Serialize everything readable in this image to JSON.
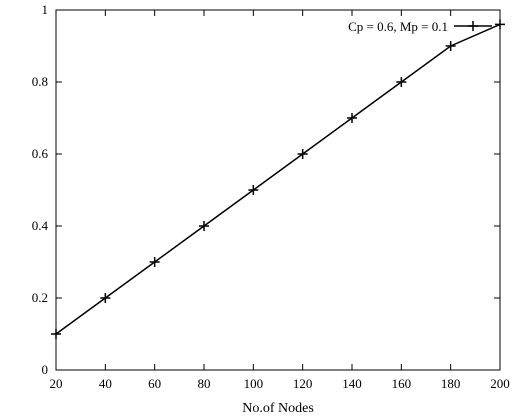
{
  "chart_data": {
    "type": "line",
    "title": "",
    "xlabel": "No.of Nodes",
    "ylabel": "",
    "xlim": [
      20,
      200
    ],
    "ylim": [
      0,
      1
    ],
    "x_ticks": [
      "20",
      "40",
      "60",
      "80",
      "100",
      "120",
      "140",
      "160",
      "180",
      "200"
    ],
    "y_ticks": [
      "0",
      "0.2",
      "0.4",
      "0.6",
      "0.8",
      "1"
    ],
    "grid": false,
    "legend_position": "top-right",
    "marker": "plus",
    "series": [
      {
        "name": "Cp = 0.6, Mp = 0.1",
        "color": "#000000",
        "x": [
          20,
          40,
          60,
          80,
          100,
          120,
          140,
          160,
          180,
          200
        ],
        "y": [
          0.1,
          0.2,
          0.3,
          0.4,
          0.5,
          0.6,
          0.7,
          0.8,
          0.9,
          0.96
        ]
      }
    ]
  }
}
